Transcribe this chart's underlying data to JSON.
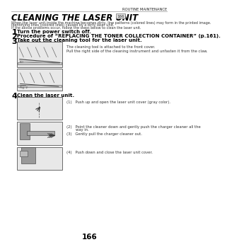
{
  "bg_color": "#ffffff",
  "header_text": "ROUTINE MAINTENANCE",
  "title": "CLEANING THE LASER UNIT",
  "title_badge": "166",
  "body_lines": [
    "When the laser unit inside the machine becomes dirty, line patterns (colored lines) may form in the printed image.",
    "Identifying lines (colored lines) caused by a dirty laser unit.",
    "If the above problems occur, follow the steps below to clean the laser unit."
  ],
  "steps": [
    {
      "num": "1",
      "text": "Turn the power switch off."
    },
    {
      "num": "2",
      "text": "Procedure of “REPLACING THE TONER COLLECTION CONTAINER” (p.161)."
    },
    {
      "num": "3",
      "text": "Take out the cleaning tool for the laser unit."
    },
    {
      "num": "4",
      "text": "Clean the laser unit."
    }
  ],
  "step3_note1": "The cleaning tool is attached to the front cover.",
  "step3_note2": "Pull the right side of the cleaning instrument and unfasten it from the claw.",
  "step4_items": [
    "(1)   Push up and open the laser unit cover (gray color).",
    "(2)   Point the cleaner down and gently push the charger cleaner all the\n        way in.",
    "(3)   Gently pull the charger cleaner out.",
    "(4)   Push down and close the laser unit cover."
  ],
  "page_number": "166",
  "line_color": "#aaaaaa",
  "header_color": "#222222",
  "title_color": "#000000",
  "body_color": "#333333",
  "step_num_color": "#000000",
  "step_text_color": "#000000",
  "img_face": "#e8e8e8",
  "img_edge": "#555555"
}
